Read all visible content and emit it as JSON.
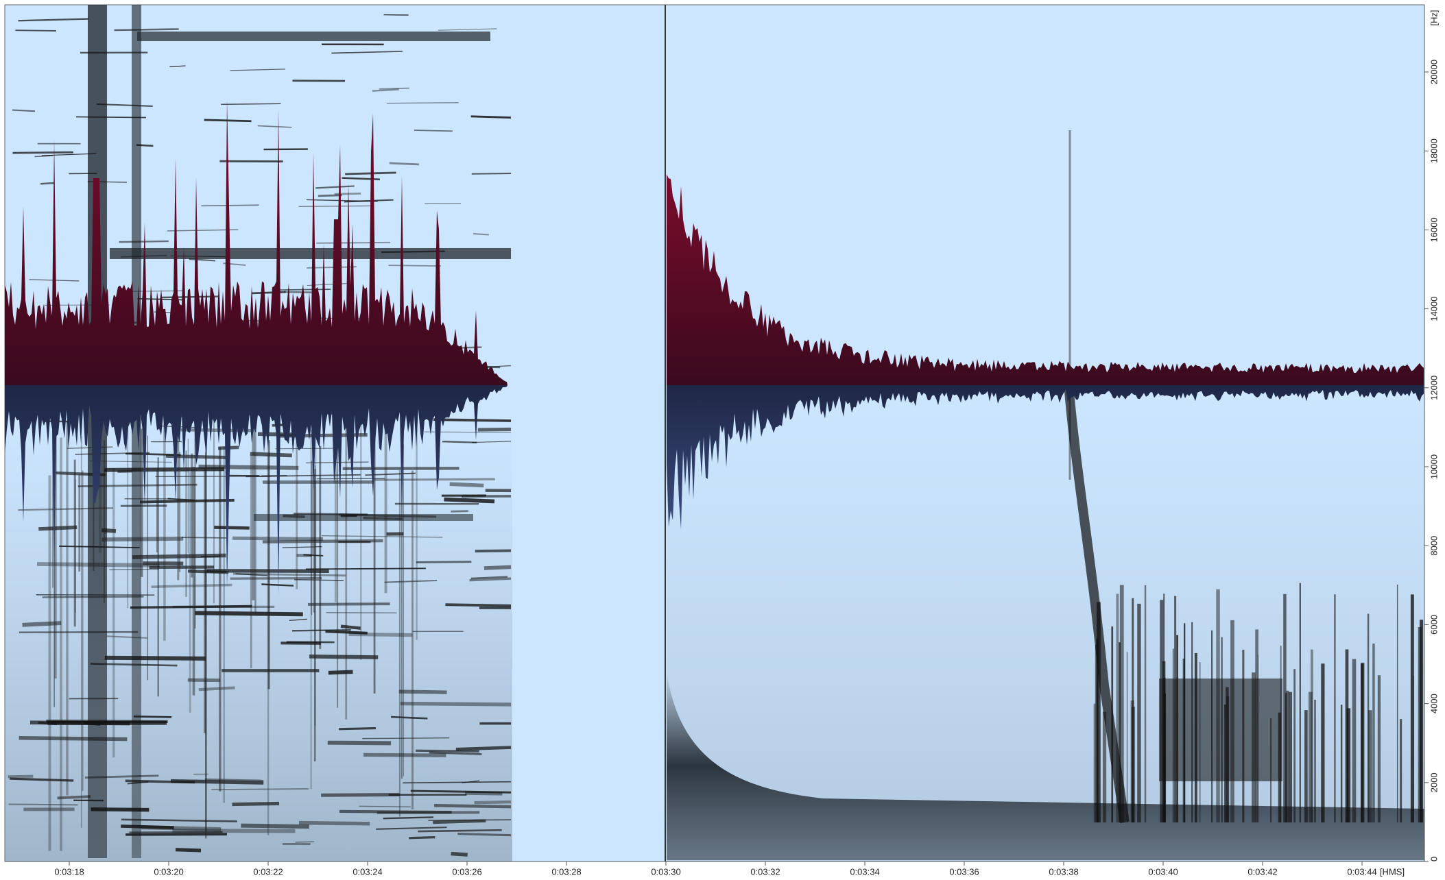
{
  "x_axis": {
    "ticks": [
      "0:03:18",
      "0:03:20",
      "0:03:22",
      "0:03:24",
      "0:03:26",
      "0:03:28",
      "0:03:30",
      "0:03:32",
      "0:03:34",
      "0:03:36",
      "0:03:38",
      "0:03:40",
      "0:03:42",
      "0:03:44"
    ],
    "unit": "[HMS]"
  },
  "y_axis": {
    "ticks": [
      0,
      2000,
      4000,
      6000,
      8000,
      10000,
      12000,
      14000,
      16000,
      18000,
      20000
    ],
    "unit": "[Hz]"
  }
}
